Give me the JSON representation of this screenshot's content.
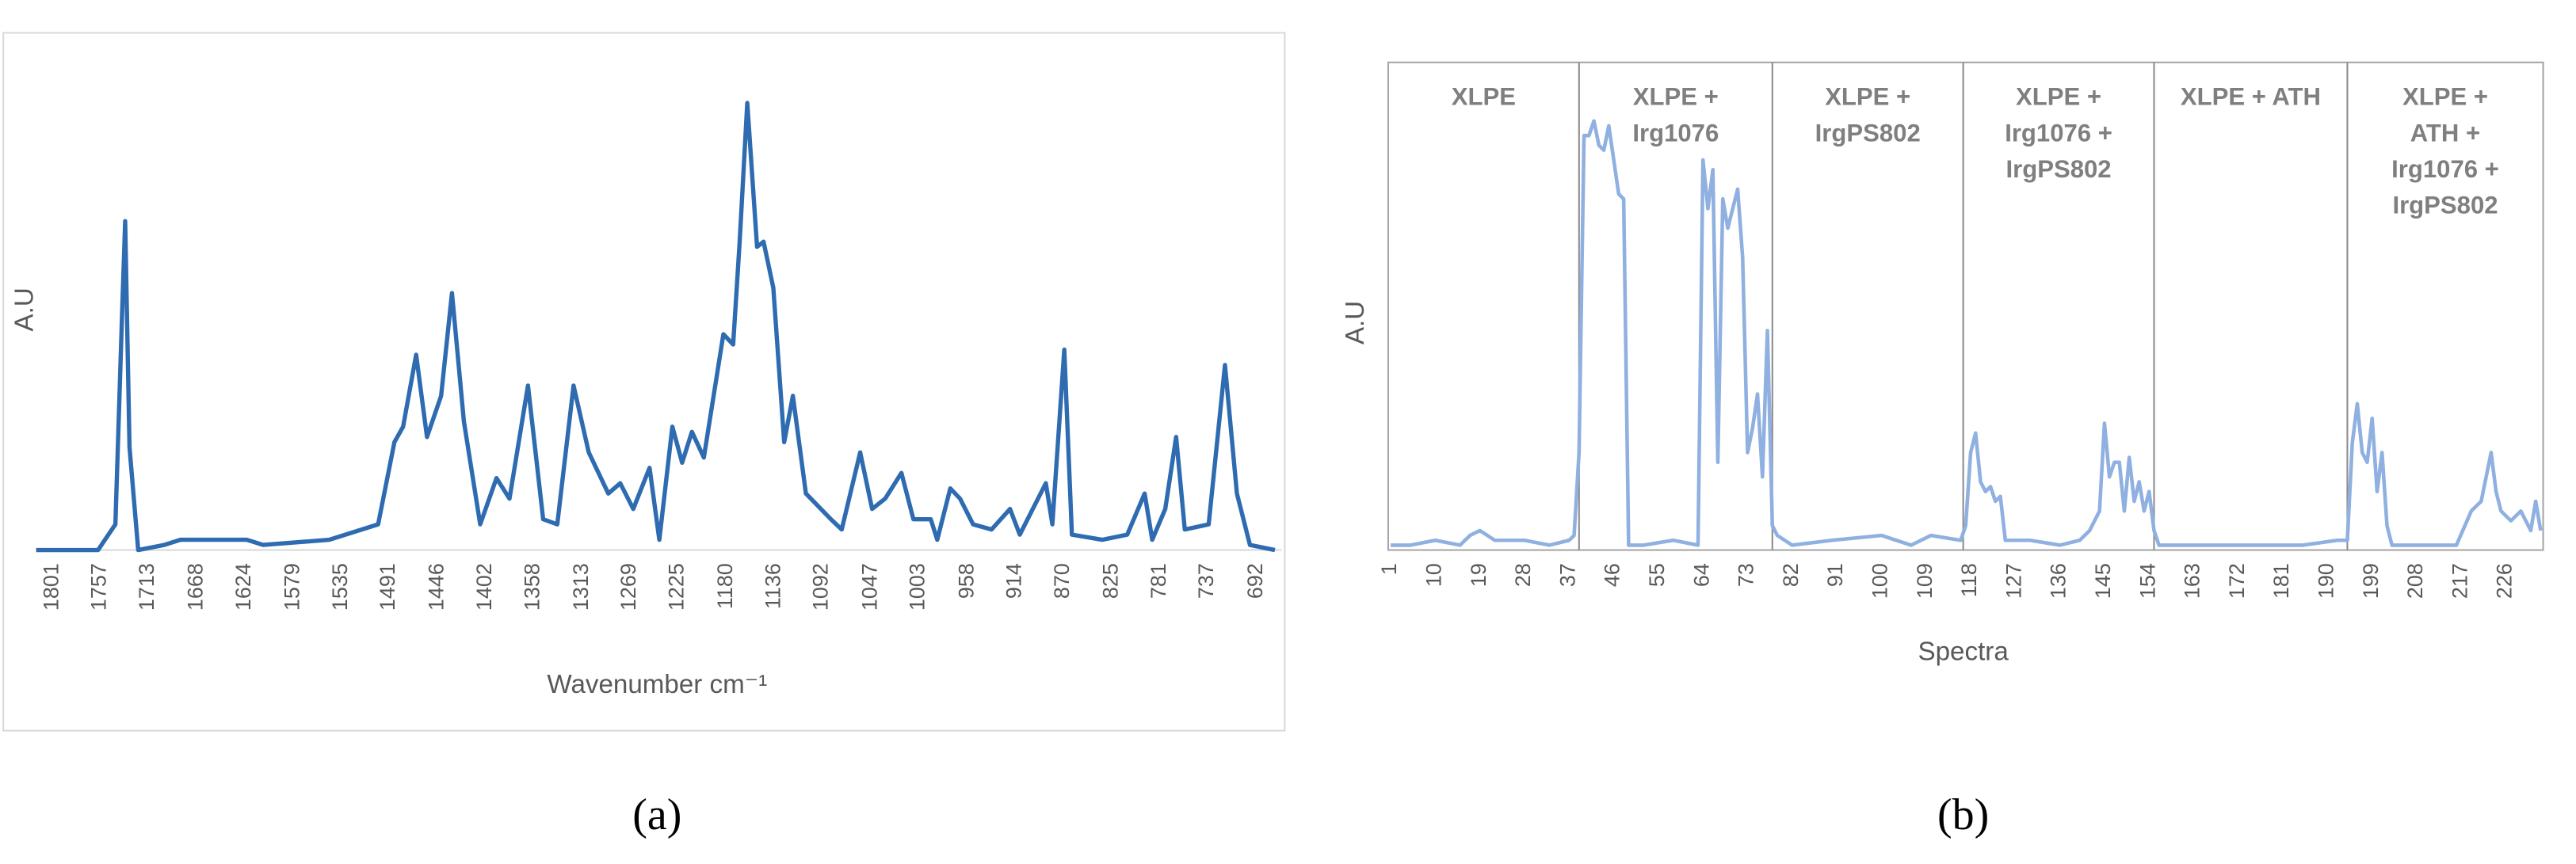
{
  "chart_data": [
    {
      "type": "line",
      "panel": "a",
      "caption": "(a)",
      "xlabel": "Wavenumber cm⁻¹",
      "ylabel": "A.U",
      "color": "#2e6bb0",
      "xlim": [
        1816,
        669
      ],
      "ylim": [
        0,
        100
      ],
      "xticks": [
        1801,
        1757,
        1713,
        1668,
        1624,
        1579,
        1535,
        1491,
        1446,
        1402,
        1358,
        1313,
        1269,
        1225,
        1180,
        1136,
        1092,
        1047,
        1003,
        958,
        914,
        870,
        825,
        781,
        737,
        692
      ],
      "x": [
        1816,
        1759,
        1743,
        1737,
        1734,
        1730,
        1722,
        1698,
        1683,
        1622,
        1607,
        1546,
        1501,
        1486,
        1478,
        1466,
        1456,
        1443,
        1433,
        1422,
        1407,
        1392,
        1380,
        1363,
        1349,
        1336,
        1321,
        1307,
        1289,
        1278,
        1266,
        1251,
        1242,
        1230,
        1221,
        1212,
        1201,
        1183,
        1174,
        1168,
        1161,
        1152,
        1146,
        1137,
        1127,
        1119,
        1107,
        1084,
        1074,
        1057,
        1046,
        1034,
        1019,
        1008,
        992,
        986,
        974,
        965,
        953,
        936,
        919,
        910,
        886,
        880,
        869,
        862,
        834,
        811,
        795,
        788,
        776,
        766,
        758,
        736,
        721,
        710,
        698,
        675
      ],
      "values": [
        0,
        0,
        5,
        45,
        64,
        20,
        0,
        1,
        2,
        2,
        1,
        2,
        5,
        21,
        24,
        38,
        22,
        30,
        50,
        25,
        5,
        14,
        10,
        32,
        6,
        5,
        32,
        19,
        11,
        13,
        8,
        16,
        2,
        24,
        17,
        23,
        18,
        42,
        40,
        60,
        87,
        59,
        60,
        51,
        21,
        30,
        11,
        6,
        4,
        19,
        8,
        10,
        15,
        6,
        6,
        2,
        12,
        10,
        5,
        4,
        8,
        3,
        13,
        5,
        39,
        3,
        2,
        3,
        11,
        2,
        8,
        22,
        4,
        5,
        36,
        11,
        1,
        0
      ]
    },
    {
      "type": "line",
      "panel": "b",
      "caption": "(b)",
      "xlabel": "Spectra",
      "ylabel": "A.U",
      "color": "#8fb0e0",
      "xlim": [
        0.5,
        233.5
      ],
      "ylim": [
        0,
        100
      ],
      "xticks": [
        1,
        10,
        19,
        28,
        37,
        46,
        55,
        64,
        73,
        82,
        91,
        100,
        109,
        118,
        127,
        136,
        145,
        154,
        163,
        172,
        181,
        190,
        199,
        208,
        217,
        226
      ],
      "regions": [
        {
          "label": [
            "XLPE"
          ],
          "start": 0.5,
          "end": 39
        },
        {
          "label": [
            "XLPE +",
            "Irg1076"
          ],
          "start": 39,
          "end": 78
        },
        {
          "label": [
            "XLPE +",
            "IrgPS802"
          ],
          "start": 78,
          "end": 116.5
        },
        {
          "label": [
            "XLPE +",
            "Irg1076 +",
            "IrgPS802"
          ],
          "start": 116.5,
          "end": 155
        },
        {
          "label": [
            "XLPE + ATH"
          ],
          "start": 155,
          "end": 194
        },
        {
          "label": [
            "XLPE +",
            "ATH +",
            "Irg1076 +",
            "IrgPS802"
          ],
          "start": 194,
          "end": 233.5
        }
      ],
      "x": [
        1,
        5,
        10,
        15,
        17,
        19,
        22,
        28,
        33,
        37,
        38,
        39,
        40,
        41,
        42,
        43,
        44,
        45,
        46,
        47,
        48,
        49,
        52,
        58,
        63,
        64,
        65,
        66,
        67,
        68,
        69,
        70,
        71,
        72,
        73,
        74,
        75,
        76,
        77,
        78,
        79,
        82,
        90,
        100,
        106,
        110,
        116,
        117,
        118,
        119,
        120,
        121,
        122,
        123,
        124,
        125,
        130,
        136,
        140,
        142,
        144,
        145,
        146,
        147,
        148,
        149,
        150,
        151,
        152,
        153,
        154,
        155,
        156,
        165,
        175,
        185,
        192,
        194,
        195,
        196,
        197,
        198,
        199,
        200,
        201,
        202,
        203,
        210,
        216,
        219,
        221,
        223,
        224,
        225,
        227,
        229,
        231,
        232,
        233
      ],
      "values": [
        1,
        1,
        2,
        1,
        3,
        4,
        2,
        2,
        1,
        2,
        3,
        20,
        85,
        85,
        88,
        83,
        82,
        87,
        80,
        73,
        72,
        1,
        1,
        2,
        1,
        80,
        70,
        78,
        18,
        72,
        66,
        70,
        74,
        60,
        20,
        25,
        32,
        15,
        45,
        5,
        3,
        1,
        2,
        3,
        1,
        3,
        2,
        5,
        20,
        24,
        14,
        12,
        13,
        10,
        11,
        2,
        2,
        1,
        2,
        4,
        8,
        26,
        15,
        18,
        18,
        8,
        19,
        10,
        14,
        8,
        12,
        4,
        1,
        1,
        1,
        1,
        2,
        2,
        22,
        30,
        20,
        18,
        27,
        12,
        20,
        5,
        1,
        1,
        1,
        8,
        10,
        20,
        12,
        8,
        6,
        8,
        4,
        10,
        4
      ]
    }
  ]
}
